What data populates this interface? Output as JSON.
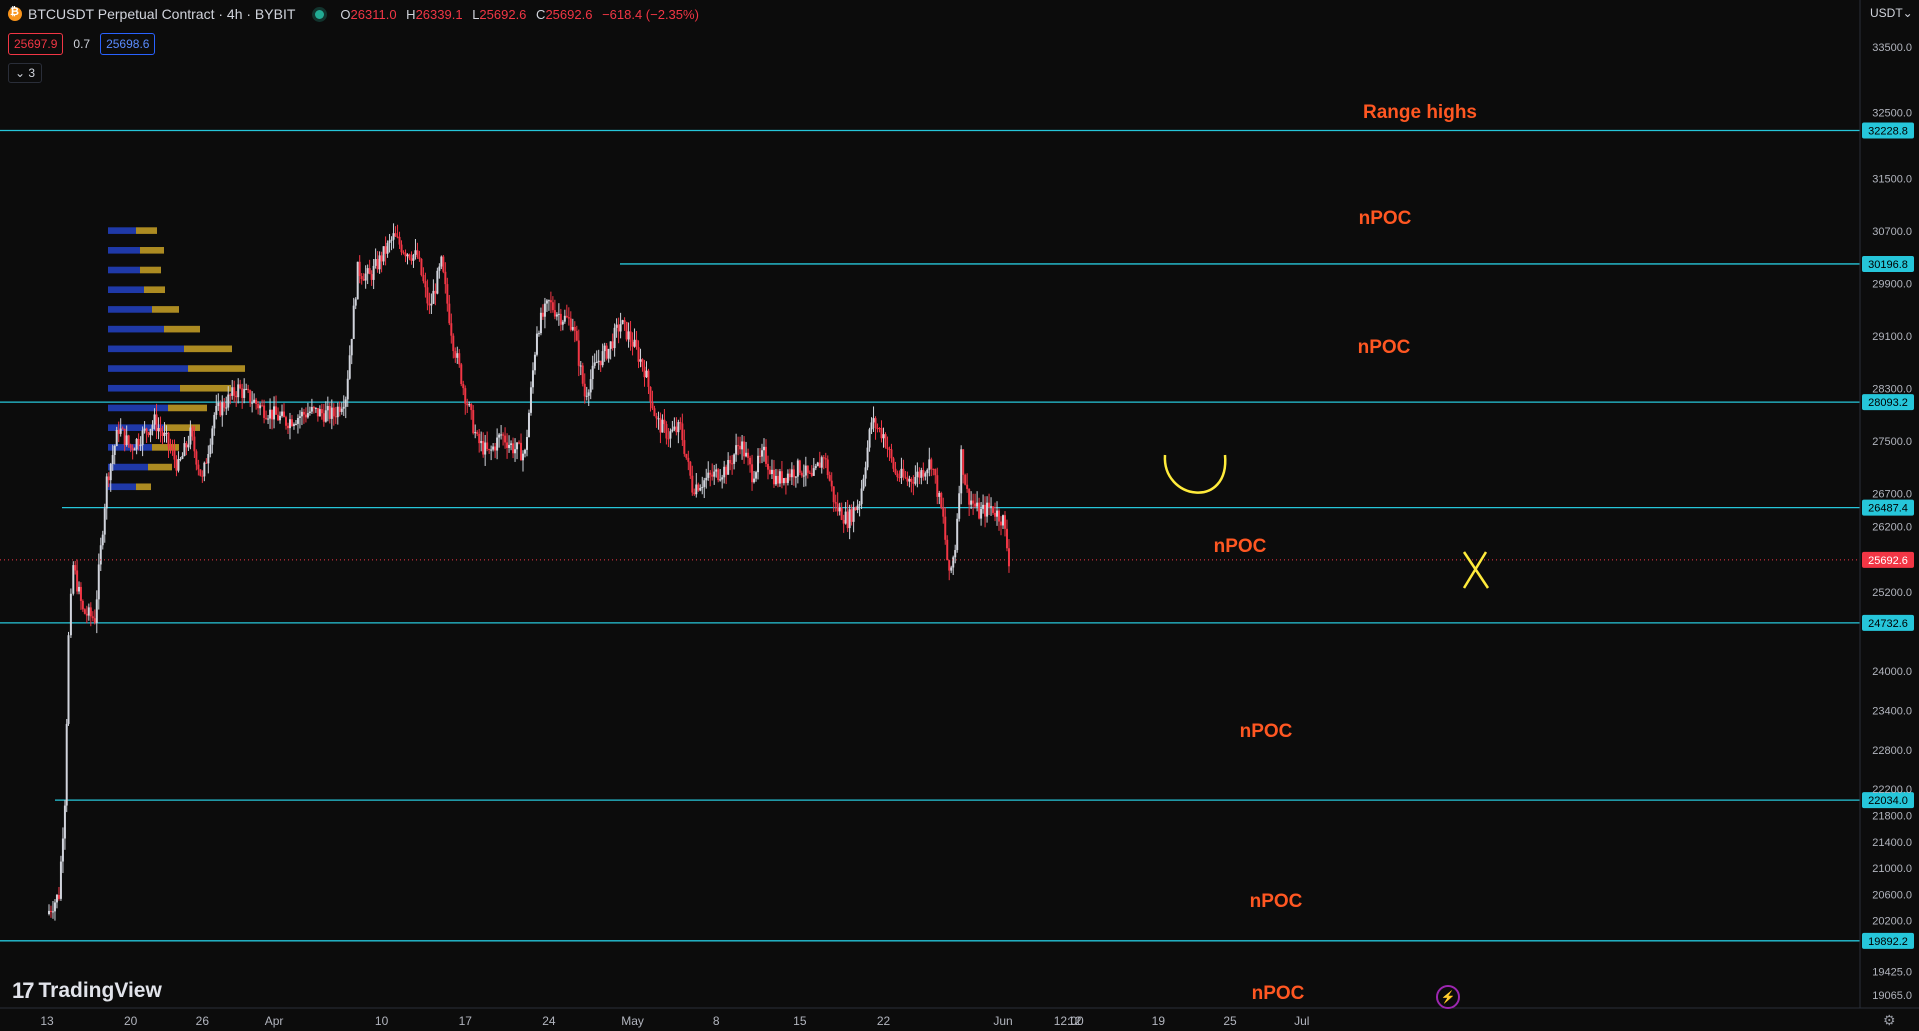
{
  "legend": {
    "symbol": "BTCUSDT Perpetual Contract · 4h · BYBIT",
    "ohlc": [
      {
        "key": "O",
        "value": "26311.0"
      },
      {
        "key": "H",
        "value": "26339.1"
      },
      {
        "key": "L",
        "value": "25692.6"
      },
      {
        "key": "C",
        "value": "25692.6"
      },
      {
        "key": "",
        "value": "−618.4 (−2.35%)"
      }
    ],
    "sell_price": "25697.9",
    "spread": "0.7",
    "buy_price": "25698.6",
    "collapse_label": "3"
  },
  "brand": "TradingView",
  "currency": "USDT",
  "colors": {
    "background": "#0c0c0c",
    "level_line": "#26c6da",
    "annotation_text": "#ff5722",
    "up_candle": "#d1d4dc",
    "down_candle": "#f23645",
    "marker": "#ffeb3b",
    "vp_up": "#2342c4",
    "vp_down": "#c9a227"
  },
  "chart_data": {
    "type": "candlestick",
    "symbol": "BTCUSDT",
    "interval": "4h",
    "ylim": [
      18900,
      34200
    ],
    "y_ticks": [
      33500.0,
      32500.0,
      31500.0,
      30700.0,
      29900.0,
      29100.0,
      28300.0,
      27500.0,
      26700.0,
      26200.0,
      25200.0,
      24000.0,
      23400.0,
      22800.0,
      22200.0,
      21800.0,
      21400.0,
      21000.0,
      20600.0,
      20200.0,
      19425.0,
      19065.0
    ],
    "x_ticks": [
      "13",
      "20",
      "26",
      "Apr",
      "10",
      "17",
      "24",
      "May",
      "8",
      "15",
      "22",
      "Jun",
      "12:00",
      "12",
      "19",
      "25",
      "Jul"
    ],
    "x_tick_days": [
      0,
      7,
      13,
      19,
      28,
      35,
      42,
      49,
      56,
      63,
      70,
      80,
      85.5,
      86,
      93,
      99,
      105
    ],
    "close_series": [
      {
        "day": 0,
        "value": 20300
      },
      {
        "day": 1,
        "value": 20600
      },
      {
        "day": 1.5,
        "value": 22050
      },
      {
        "day": 1.8,
        "value": 24500
      },
      {
        "day": 2.2,
        "value": 25600
      },
      {
        "day": 3,
        "value": 24900
      },
      {
        "day": 4,
        "value": 24800
      },
      {
        "day": 5,
        "value": 26900
      },
      {
        "day": 6,
        "value": 27700
      },
      {
        "day": 7,
        "value": 27400
      },
      {
        "day": 8,
        "value": 27600
      },
      {
        "day": 9,
        "value": 27800
      },
      {
        "day": 10,
        "value": 27500
      },
      {
        "day": 11,
        "value": 27100
      },
      {
        "day": 12,
        "value": 27600
      },
      {
        "day": 13,
        "value": 26900
      },
      {
        "day": 14,
        "value": 27900
      },
      {
        "day": 16,
        "value": 28300
      },
      {
        "day": 18,
        "value": 28000
      },
      {
        "day": 20,
        "value": 27800
      },
      {
        "day": 22,
        "value": 27950
      },
      {
        "day": 24,
        "value": 27900
      },
      {
        "day": 25,
        "value": 28200
      },
      {
        "day": 26,
        "value": 30100
      },
      {
        "day": 27,
        "value": 30000
      },
      {
        "day": 28,
        "value": 30300
      },
      {
        "day": 29,
        "value": 30600
      },
      {
        "day": 30,
        "value": 30400
      },
      {
        "day": 31,
        "value": 30300
      },
      {
        "day": 32,
        "value": 29500
      },
      {
        "day": 33,
        "value": 30200
      },
      {
        "day": 34,
        "value": 29000
      },
      {
        "day": 35,
        "value": 28200
      },
      {
        "day": 36,
        "value": 27500
      },
      {
        "day": 37,
        "value": 27300
      },
      {
        "day": 38,
        "value": 27600
      },
      {
        "day": 39,
        "value": 27400
      },
      {
        "day": 40,
        "value": 27300
      },
      {
        "day": 41,
        "value": 29200
      },
      {
        "day": 42,
        "value": 29600
      },
      {
        "day": 43,
        "value": 29400
      },
      {
        "day": 44,
        "value": 29300
      },
      {
        "day": 45,
        "value": 28200
      },
      {
        "day": 46,
        "value": 28700
      },
      {
        "day": 47,
        "value": 28900
      },
      {
        "day": 48,
        "value": 29300
      },
      {
        "day": 49,
        "value": 29000
      },
      {
        "day": 50,
        "value": 28600
      },
      {
        "day": 51,
        "value": 27800
      },
      {
        "day": 52,
        "value": 27600
      },
      {
        "day": 53,
        "value": 27700
      },
      {
        "day": 54,
        "value": 26800
      },
      {
        "day": 55,
        "value": 26900
      },
      {
        "day": 56,
        "value": 27000
      },
      {
        "day": 57,
        "value": 27100
      },
      {
        "day": 58,
        "value": 27500
      },
      {
        "day": 59,
        "value": 27000
      },
      {
        "day": 60,
        "value": 27300
      },
      {
        "day": 61,
        "value": 26900
      },
      {
        "day": 62,
        "value": 27000
      },
      {
        "day": 63,
        "value": 27100
      },
      {
        "day": 64,
        "value": 26900
      },
      {
        "day": 65,
        "value": 27300
      },
      {
        "day": 66,
        "value": 26500
      },
      {
        "day": 67,
        "value": 26300
      },
      {
        "day": 68,
        "value": 26600
      },
      {
        "day": 69,
        "value": 27800
      },
      {
        "day": 70,
        "value": 27600
      },
      {
        "day": 71,
        "value": 27000
      },
      {
        "day": 72,
        "value": 26900
      },
      {
        "day": 73,
        "value": 27000
      },
      {
        "day": 74,
        "value": 27200
      },
      {
        "day": 75,
        "value": 26300
      },
      {
        "day": 75.5,
        "value": 25400
      },
      {
        "day": 76,
        "value": 25900
      },
      {
        "day": 76.5,
        "value": 27300
      },
      {
        "day": 77,
        "value": 26700
      },
      {
        "day": 78,
        "value": 26400
      },
      {
        "day": 79,
        "value": 26500
      },
      {
        "day": 80,
        "value": 26300
      },
      {
        "day": 80.5,
        "value": 25692.6
      }
    ],
    "price_levels": [
      {
        "label": "Range highs",
        "price": "32228.8",
        "value": 32228.8
      },
      {
        "label": "nPOC",
        "price": "30196.8",
        "value": 30196.8
      },
      {
        "label": "nPOC",
        "price": "28093.2",
        "value": 28093.2
      },
      {
        "label": "",
        "price": "26487.4",
        "value": 26487.4
      },
      {
        "label": "nPOC",
        "price": "24732.6",
        "value": 24732.6
      },
      {
        "label": "nPOC",
        "price": "22034.0",
        "value": 22034.0
      },
      {
        "label": "nPOC",
        "price": "19892.2",
        "value": 19892.2
      }
    ],
    "extra_annotation": {
      "label": "nPOC"
    },
    "last_price": {
      "price": "25692.6",
      "value": 25692.6
    },
    "volume_profile": [
      {
        "price": 30700,
        "up": 0.35,
        "down": 0.35
      },
      {
        "price": 30400,
        "up": 0.4,
        "down": 0.4
      },
      {
        "price": 30100,
        "up": 0.4,
        "down": 0.35
      },
      {
        "price": 29800,
        "up": 0.45,
        "down": 0.35
      },
      {
        "price": 29500,
        "up": 0.55,
        "down": 0.45
      },
      {
        "price": 29200,
        "up": 0.7,
        "down": 0.6
      },
      {
        "price": 28900,
        "up": 0.95,
        "down": 0.8
      },
      {
        "price": 28600,
        "up": 1.0,
        "down": 0.95
      },
      {
        "price": 28300,
        "up": 0.9,
        "down": 0.85
      },
      {
        "price": 28000,
        "up": 0.75,
        "down": 0.65
      },
      {
        "price": 27700,
        "up": 0.7,
        "down": 0.6
      },
      {
        "price": 27400,
        "up": 0.55,
        "down": 0.45
      },
      {
        "price": 27100,
        "up": 0.5,
        "down": 0.4
      },
      {
        "price": 26800,
        "up": 0.35,
        "down": 0.25
      }
    ]
  }
}
